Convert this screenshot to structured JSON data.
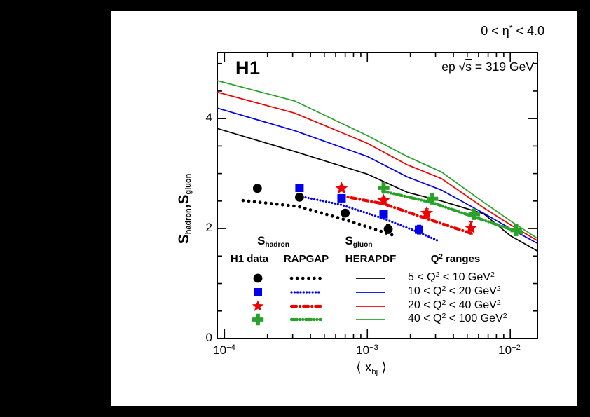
{
  "window": {
    "page_bg": "#000000",
    "canvas_bg": "#ffffff"
  },
  "header": {
    "eta_range_rich": [
      [
        "0 < η",
        ""
      ],
      [
        "*",
        "sup"
      ],
      [
        " < 4.0",
        ""
      ]
    ],
    "experiment_label": "H1",
    "beam_energy_rich": [
      [
        "ep  ",
        ""
      ],
      [
        "√",
        ""
      ],
      [
        "s",
        "ol"
      ],
      [
        " = 319 GeV",
        ""
      ]
    ]
  },
  "axes": {
    "x": {
      "scale": "log",
      "min": 8.9e-05,
      "max": 0.0155,
      "major_ticks": [
        0.0001,
        0.001,
        0.01
      ],
      "major_labels_rich": [
        [
          [
            "10",
            ""
          ],
          [
            "−4",
            "sup"
          ]
        ],
        [
          [
            "10",
            ""
          ],
          [
            "−3",
            "sup"
          ]
        ],
        [
          [
            "10",
            ""
          ],
          [
            "−2",
            "sup"
          ]
        ]
      ],
      "title_rich": [
        [
          "⟨ x",
          ""
        ],
        [
          "bj",
          "sub"
        ],
        [
          " ⟩",
          ""
        ]
      ]
    },
    "y": {
      "scale": "linear",
      "min": 0,
      "max": 5.2,
      "major_ticks": [
        0,
        2,
        4
      ],
      "major_labels": [
        "0",
        "2",
        "4"
      ],
      "minor_step": 0.5,
      "title_rich": [
        [
          "S",
          ""
        ],
        [
          "hadron",
          "sub"
        ],
        [
          ",S",
          ""
        ],
        [
          "gluon",
          "sub"
        ]
      ]
    }
  },
  "legend": {
    "sample_headers": [
      {
        "label_rich": [
          [
            "S",
            ""
          ],
          [
            "hadron",
            "sub"
          ]
        ]
      },
      {
        "label_rich": [
          [
            "S",
            ""
          ],
          [
            "gluon",
            "sub"
          ]
        ]
      }
    ],
    "columns": {
      "data": "H1 data",
      "rapgap": "RAPGAP",
      "herapdf": "HERAPDF"
    },
    "ranges_header_rich": [
      [
        "Q",
        ""
      ],
      [
        "2",
        "sup"
      ],
      [
        " ranges",
        ""
      ]
    ],
    "rows": [
      {
        "label_rich": [
          [
            "5 < Q",
            ""
          ],
          [
            "2",
            "sup"
          ],
          [
            " < 10 GeV",
            ""
          ],
          [
            "2",
            "sup"
          ]
        ]
      },
      {
        "label_rich": [
          [
            "10 < Q",
            ""
          ],
          [
            "2",
            "sup"
          ],
          [
            " < 20 GeV",
            ""
          ],
          [
            "2",
            "sup"
          ]
        ]
      },
      {
        "label_rich": [
          [
            "20 < Q",
            ""
          ],
          [
            "2",
            "sup"
          ],
          [
            " < 40 GeV",
            ""
          ],
          [
            "2",
            "sup"
          ]
        ]
      },
      {
        "label_rich": [
          [
            "40 < Q",
            ""
          ],
          [
            "2",
            "sup"
          ],
          [
            " < 100 GeV",
            ""
          ],
          [
            "2",
            "sup"
          ]
        ]
      }
    ]
  },
  "chart_data": {
    "type": "scatter",
    "title": "H1",
    "subtitle": "ep sqrt(s) = 319 GeV, 0 < eta* < 4.0",
    "xlabel": "<x_bj>",
    "ylabel": "S_hadron, S_gluon",
    "xscale": "log",
    "xlim": [
      8.9e-05,
      0.0155
    ],
    "ylim": [
      0,
      5.2
    ],
    "grid": false,
    "legend_position": "bottom-inside",
    "groups": [
      {
        "q2_range": "5 < Q2 < 10 GeV2",
        "color": "#000000",
        "marker": "circle",
        "rapgap_style": "bold-dots",
        "h1_data": {
          "x": [
            0.00017,
            0.000335,
            0.0007,
            0.0014
          ],
          "y": [
            2.73,
            2.57,
            2.28,
            1.99
          ],
          "yerr": [
            0.05,
            0.05,
            0.05,
            0.08
          ]
        },
        "rapgap": {
          "x": [
            0.000135,
            0.00033,
            0.0007,
            0.00155
          ],
          "y": [
            2.51,
            2.4,
            2.16,
            1.87
          ]
        },
        "herapdf": {
          "x": [
            8.9e-05,
            0.00031,
            0.001,
            0.0019,
            0.0033,
            0.0065,
            0.01,
            0.0155
          ],
          "y": [
            3.82,
            3.4,
            2.99,
            2.66,
            2.5,
            2.27,
            1.87,
            1.59
          ]
        }
      },
      {
        "q2_range": "10 < Q2 < 20 GeV2",
        "color": "#0000ee",
        "marker": "square",
        "rapgap_style": "fine-dots",
        "h1_data": {
          "x": [
            0.000335,
            0.00066,
            0.0013,
            0.0023
          ],
          "y": [
            2.74,
            2.55,
            2.26,
            1.98
          ],
          "yerr": [
            0.05,
            0.05,
            0.05,
            0.08
          ]
        },
        "rapgap": {
          "x": [
            0.00032,
            0.00066,
            0.0013,
            0.0023,
            0.0031
          ],
          "y": [
            2.6,
            2.43,
            2.18,
            1.93,
            1.78
          ]
        },
        "herapdf": {
          "x": [
            8.9e-05,
            0.00031,
            0.001,
            0.0019,
            0.0033,
            0.0065,
            0.01,
            0.0155
          ],
          "y": [
            4.19,
            3.78,
            3.31,
            2.94,
            2.7,
            2.28,
            2.0,
            1.73
          ]
        }
      },
      {
        "q2_range": "20 < Q2 < 40 GeV2",
        "color": "#ee0000",
        "marker": "star",
        "rapgap_style": "dash-dot",
        "h1_data": {
          "x": [
            0.00066,
            0.0013,
            0.0026,
            0.0053
          ],
          "y": [
            2.73,
            2.51,
            2.28,
            2.01
          ],
          "yerr": [
            0.05,
            0.06,
            0.08,
            0.11
          ]
        },
        "rapgap": {
          "x": [
            0.00064,
            0.0013,
            0.0026,
            0.0055
          ],
          "y": [
            2.6,
            2.45,
            2.18,
            1.9
          ]
        },
        "herapdf": {
          "x": [
            8.9e-05,
            0.00031,
            0.001,
            0.0019,
            0.0033,
            0.0065,
            0.01,
            0.0155
          ],
          "y": [
            4.48,
            4.1,
            3.55,
            3.16,
            2.91,
            2.38,
            2.07,
            1.78
          ]
        }
      },
      {
        "q2_range": "40 < Q2 < 100 GeV2",
        "color": "#2aa22a",
        "marker": "cross",
        "rapgap_style": "dash-dot-dot",
        "h1_data": {
          "x": [
            0.0013,
            0.00285,
            0.0056,
            0.011
          ],
          "y": [
            2.74,
            2.54,
            2.26,
            1.97
          ],
          "yerr": [
            0.06,
            0.07,
            0.08,
            0.1
          ]
        },
        "rapgap": {
          "x": [
            0.00128,
            0.00285,
            0.0056,
            0.012
          ],
          "y": [
            2.68,
            2.47,
            2.21,
            1.92
          ]
        },
        "herapdf": {
          "x": [
            8.9e-05,
            0.00031,
            0.001,
            0.0019,
            0.0033,
            0.0065,
            0.01,
            0.0155
          ],
          "y": [
            4.69,
            4.32,
            3.69,
            3.31,
            3.03,
            2.48,
            2.14,
            1.82
          ]
        }
      }
    ]
  }
}
